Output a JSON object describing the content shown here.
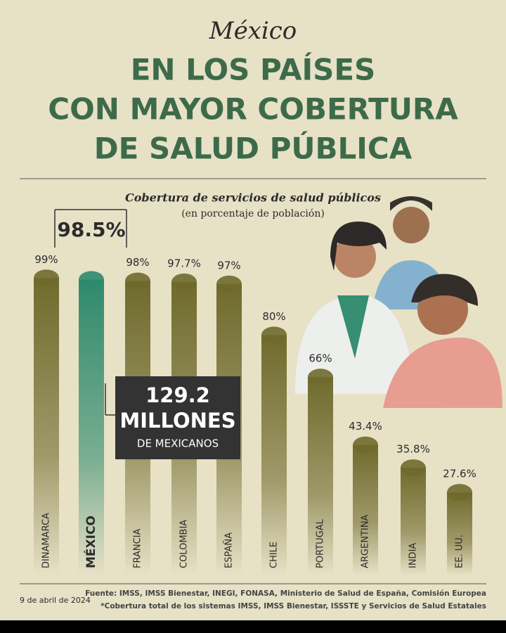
{
  "chart_data": {
    "type": "bar",
    "kicker": "México",
    "title_lines": [
      "EN LOS PAÍSES",
      "CON MAYOR COBERTURA",
      "DE SALUD PÚBLICA"
    ],
    "subtitle": "Cobertura de servicios de salud públicos",
    "unit_note": "(en porcentaje de población)",
    "categories": [
      "DINAMARCA",
      "MÉXICO",
      "FRANCIA",
      "COLOMBIA",
      "ESPAÑA",
      "CHILE",
      "PORTUGAL",
      "ARGENTINA",
      "INDIA",
      "EE. UU."
    ],
    "values": [
      99,
      98.5,
      98,
      97.7,
      97,
      80,
      66,
      43.4,
      35.8,
      27.6
    ],
    "value_labels": [
      "99%",
      "98.5%",
      "98%",
      "97.7%",
      "97%",
      "80%",
      "66%",
      "43.4%",
      "35.8%",
      "27.6%"
    ],
    "colors": [
      "#6f6a2c",
      "#2f8a6d",
      "#6f6a2c",
      "#6f6a2c",
      "#6f6a2c",
      "#6f6a2c",
      "#6f6a2c",
      "#6f6a2c",
      "#6f6a2c",
      "#6f6a2c"
    ],
    "ylim": [
      0,
      100
    ],
    "annotation": {
      "number": "129.2",
      "unit": "MILLONES",
      "text": "DE MEXICANOS"
    },
    "date": "9 de abril de 2024",
    "source": "Fuente: IMSS, IMSS Bienestar, INEGI, FONASA, Ministerio de Salud de España, Comisión Europea",
    "footnote": "*Cobertura total de los sistemas IMSS, IMSS Bienestar, ISSSTE y Servicios de Salud Estatales"
  }
}
